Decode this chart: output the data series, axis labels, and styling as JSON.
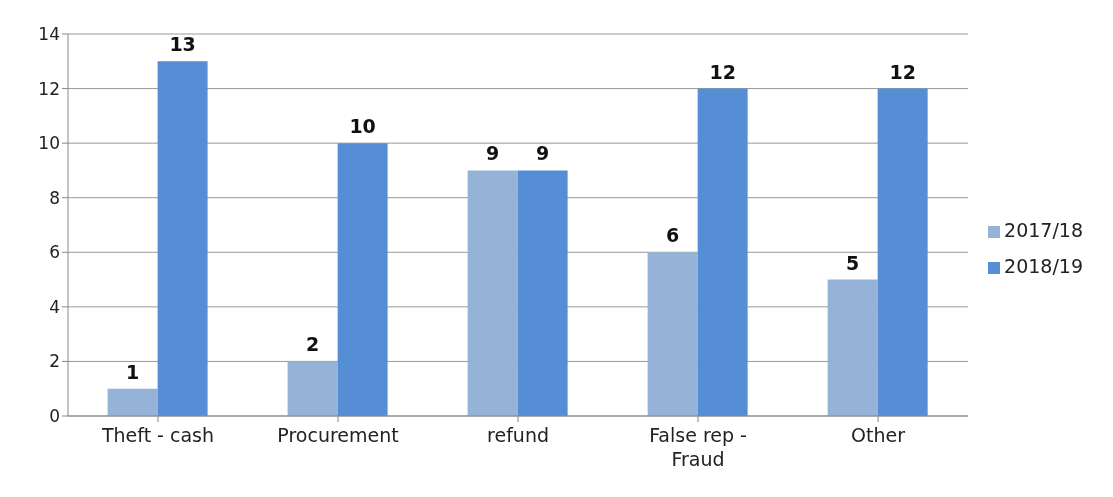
{
  "chart_data": {
    "type": "bar",
    "categories": [
      "Theft - cash",
      "Procurement",
      "refund",
      "False rep - Fraud",
      "Other"
    ],
    "series": [
      {
        "name": "2017/18",
        "color": "#95b3d7",
        "values": [
          1,
          2,
          9,
          6,
          5
        ]
      },
      {
        "name": "2018/19",
        "color": "#558ed5",
        "values": [
          13,
          10,
          9,
          12,
          12
        ]
      }
    ],
    "ylim": [
      0,
      14
    ],
    "yticks": [
      0,
      2,
      4,
      6,
      8,
      10,
      12,
      14
    ],
    "grid": "y",
    "legend": "right",
    "data_labels": true
  }
}
